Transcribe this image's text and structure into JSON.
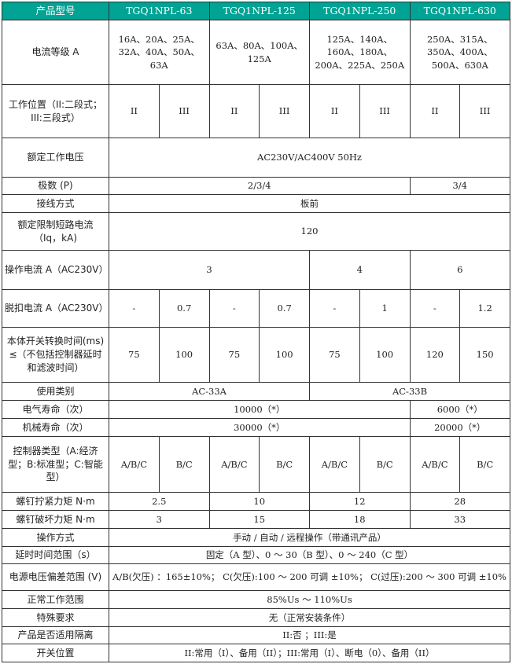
{
  "header": [
    "产品型号",
    "TGQ1NPL-63",
    "TGQ1NPL-125",
    "TGQ1NPL-250",
    "TGQ1NPL-630"
  ],
  "header_color": "#00a394",
  "rows": [
    {
      "label": "电流等级 A",
      "h": 82,
      "cells": [
        {
          "t": "16A、20A、25A、32A、40A、50A、63A",
          "s": 2
        },
        {
          "t": "63A、80A、100A、125A",
          "s": 2
        },
        {
          "t": "125A、140A、160A、180A、200A、225A、250A",
          "s": 2
        },
        {
          "t": "250A、315A、350A、400A、500A、630A",
          "s": 2
        }
      ]
    },
    {
      "label": "工作位置（II:二段式；III:三段式）",
      "h": 68,
      "cells": [
        {
          "t": "II",
          "s": 1
        },
        {
          "t": "III",
          "s": 1
        },
        {
          "t": "II",
          "s": 1
        },
        {
          "t": "III",
          "s": 1
        },
        {
          "t": "II",
          "s": 1
        },
        {
          "t": "III",
          "s": 1
        },
        {
          "t": "II",
          "s": 1
        },
        {
          "t": "III",
          "s": 1
        }
      ]
    },
    {
      "label": "额定工作电压",
      "h": 50,
      "cells": [
        {
          "t": "AC230V/AC400V 50Hz",
          "s": 8
        }
      ]
    },
    {
      "label": "极数 (P)",
      "h": 22,
      "cells": [
        {
          "t": "2/3/4",
          "s": 6
        },
        {
          "t": "3/4",
          "s": 2
        }
      ]
    },
    {
      "label": "接线方式",
      "h": 23,
      "cells": [
        {
          "t": "板前",
          "s": 8
        }
      ]
    },
    {
      "label": "额定限制短路电流（Iq，kA)",
      "h": 48,
      "cells": [
        {
          "t": "120",
          "s": 8
        }
      ]
    },
    {
      "label": "操作电流 A（AC230V）",
      "h": 50,
      "cells": [
        {
          "t": "3",
          "s": 4
        },
        {
          "t": "4",
          "s": 2
        },
        {
          "t": "6",
          "s": 2
        }
      ]
    },
    {
      "label": "脱扣电流 A（AC230V）",
      "h": 48,
      "cells": [
        {
          "t": "-",
          "s": 1
        },
        {
          "t": "0.7",
          "s": 1
        },
        {
          "t": "-",
          "s": 1
        },
        {
          "t": "0.7",
          "s": 1
        },
        {
          "t": "-",
          "s": 1
        },
        {
          "t": "1",
          "s": 1
        },
        {
          "t": "-",
          "s": 1
        },
        {
          "t": "1.2",
          "s": 1
        }
      ]
    },
    {
      "label": "本体开关转换时间(ms) ≤（不包括控制器延时和滤波时间）",
      "h": 70,
      "cells": [
        {
          "t": "75",
          "s": 1
        },
        {
          "t": "100",
          "s": 1
        },
        {
          "t": "75",
          "s": 1
        },
        {
          "t": "100",
          "s": 1
        },
        {
          "t": "75",
          "s": 1
        },
        {
          "t": "100",
          "s": 1
        },
        {
          "t": "120",
          "s": 1
        },
        {
          "t": "150",
          "s": 1
        }
      ]
    },
    {
      "label": "使用类别",
      "h": 23,
      "cells": [
        {
          "t": "AC-33A",
          "s": 4
        },
        {
          "t": "AC-33B",
          "s": 4
        }
      ]
    },
    {
      "label": "电气寿命（次）",
      "h": 23,
      "cells": [
        {
          "t": "10000（*）",
          "s": 6
        },
        {
          "t": "6000（*）",
          "s": 2
        }
      ]
    },
    {
      "label": "机械寿命（次）",
      "h": 23,
      "cells": [
        {
          "t": "30000（*）",
          "s": 6
        },
        {
          "t": "20000（*）",
          "s": 2
        }
      ]
    },
    {
      "label": "控制器类型（A:经济型；B:标准型；C:智能型）",
      "h": 71,
      "cells": [
        {
          "t": "A/B/C",
          "s": 1
        },
        {
          "t": "B/C",
          "s": 1
        },
        {
          "t": "A/B/C",
          "s": 1
        },
        {
          "t": "B/C",
          "s": 1
        },
        {
          "t": "A/B/C",
          "s": 1
        },
        {
          "t": "B/C",
          "s": 1
        },
        {
          "t": "A/B/C",
          "s": 1
        },
        {
          "t": "B/C",
          "s": 1
        }
      ]
    },
    {
      "label": "螺钉拧紧力矩 N·m",
      "h": 23,
      "cells": [
        {
          "t": "2.5",
          "s": 2
        },
        {
          "t": "10",
          "s": 2
        },
        {
          "t": "12",
          "s": 2
        },
        {
          "t": "28",
          "s": 2
        }
      ]
    },
    {
      "label": "螺钉破坏力矩 N·m",
      "h": 23,
      "cells": [
        {
          "t": "3",
          "s": 2
        },
        {
          "t": "15",
          "s": 2
        },
        {
          "t": "18",
          "s": 2
        },
        {
          "t": "33",
          "s": 2
        }
      ]
    },
    {
      "label": "操作方式",
      "h": 23,
      "cells": [
        {
          "t": "手动 / 自动 / 远程操作（带通讯产品）",
          "s": 8
        }
      ]
    },
    {
      "label": "延时时间范围（s）",
      "h": 22,
      "cells": [
        {
          "t": "固定（A 型）、0 ～ 30（B 型）、0 ～ 240（C 型）",
          "s": 8
        }
      ]
    },
    {
      "label": "电源电压偏差范围 (V)",
      "h": 34,
      "cells": [
        {
          "t": "A/B(欠压) ：165±10%； C(欠压):100 ～ 200 可调 ±10%； C(过压):200 ～ 300 可调 ±10%",
          "s": 8
        }
      ]
    },
    {
      "label": "正常工作范围",
      "h": 23,
      "cells": [
        {
          "t": "85%Us ～ 110%Us",
          "s": 8
        }
      ]
    },
    {
      "label": "特殊要求",
      "h": 23,
      "cells": [
        {
          "t": "无（正常安装条件）",
          "s": 8
        }
      ]
    },
    {
      "label": "产品是否适用隔离",
      "h": 22,
      "cells": [
        {
          "t": "II:否 ；III:是",
          "s": 8
        }
      ]
    },
    {
      "label": "开关位置",
      "h": 23,
      "cells": [
        {
          "t": "II:常用（I）、备用（II）；III:常用（I）、断电（0）、备用（II）",
          "s": 8
        }
      ]
    }
  ]
}
